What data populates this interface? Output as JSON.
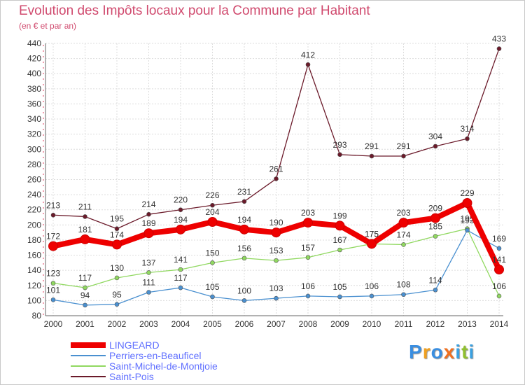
{
  "chart_data": {
    "type": "line",
    "title": "Evolution des Impôts locaux pour la Commune par Habitant",
    "subtitle": "(en € et par an)",
    "xlabel": "",
    "ylabel": "",
    "x": [
      "2000",
      "2001",
      "2002",
      "2003",
      "2004",
      "2005",
      "2006",
      "2007",
      "2008",
      "2009",
      "2010",
      "2011",
      "2012",
      "2013",
      "2014"
    ],
    "ylim": [
      80,
      440
    ],
    "yticks": [
      80,
      100,
      120,
      140,
      160,
      180,
      200,
      220,
      240,
      260,
      280,
      300,
      320,
      340,
      360,
      380,
      400,
      420,
      440
    ],
    "grid": true,
    "legend_position": "bottom-left",
    "series": [
      {
        "name": "Saint-Pois",
        "color": "#6b1a2a",
        "values": [
          213,
          211,
          195,
          214,
          220,
          226,
          231,
          261,
          412,
          293,
          291,
          291,
          304,
          314,
          433
        ]
      },
      {
        "name": "Saint-Michel-de-Montjoie",
        "color": "#90d860",
        "values": [
          123,
          117,
          130,
          137,
          141,
          150,
          156,
          153,
          157,
          167,
          175,
          174,
          185,
          195,
          106
        ]
      },
      {
        "name": "Perriers-en-Beauficel",
        "color": "#4a90d0",
        "values": [
          101,
          94,
          95,
          111,
          117,
          105,
          100,
          103,
          106,
          105,
          106,
          108,
          114,
          193,
          169
        ]
      },
      {
        "name": "LINGEARD",
        "color": "#ee0000",
        "values": [
          172,
          181,
          174,
          189,
          194,
          204,
          194,
          190,
          203,
          199,
          175,
          203,
          209,
          229,
          141
        ]
      }
    ]
  },
  "legend": {
    "items": [
      {
        "label": "LINGEARD",
        "color": "#ee0000"
      },
      {
        "label": "Perriers-en-Beauficel",
        "color": "#4a90d0"
      },
      {
        "label": "Saint-Michel-de-Montjoie",
        "color": "#90d860"
      },
      {
        "label": "Saint-Pois",
        "color": "#6b1a2a"
      }
    ]
  },
  "logo": {
    "text": "Proxiti",
    "letters": [
      {
        "char": "P",
        "color": "#3a8ee0"
      },
      {
        "char": "r",
        "color": "#f0a020"
      },
      {
        "char": "o",
        "color": "#3a8ee0"
      },
      {
        "char": "x",
        "color": "#f07020"
      },
      {
        "char": "i",
        "color": "#3aa0e0"
      },
      {
        "char": "t",
        "color": "#90c030"
      },
      {
        "char": "i",
        "color": "#3aa0e0"
      }
    ]
  }
}
